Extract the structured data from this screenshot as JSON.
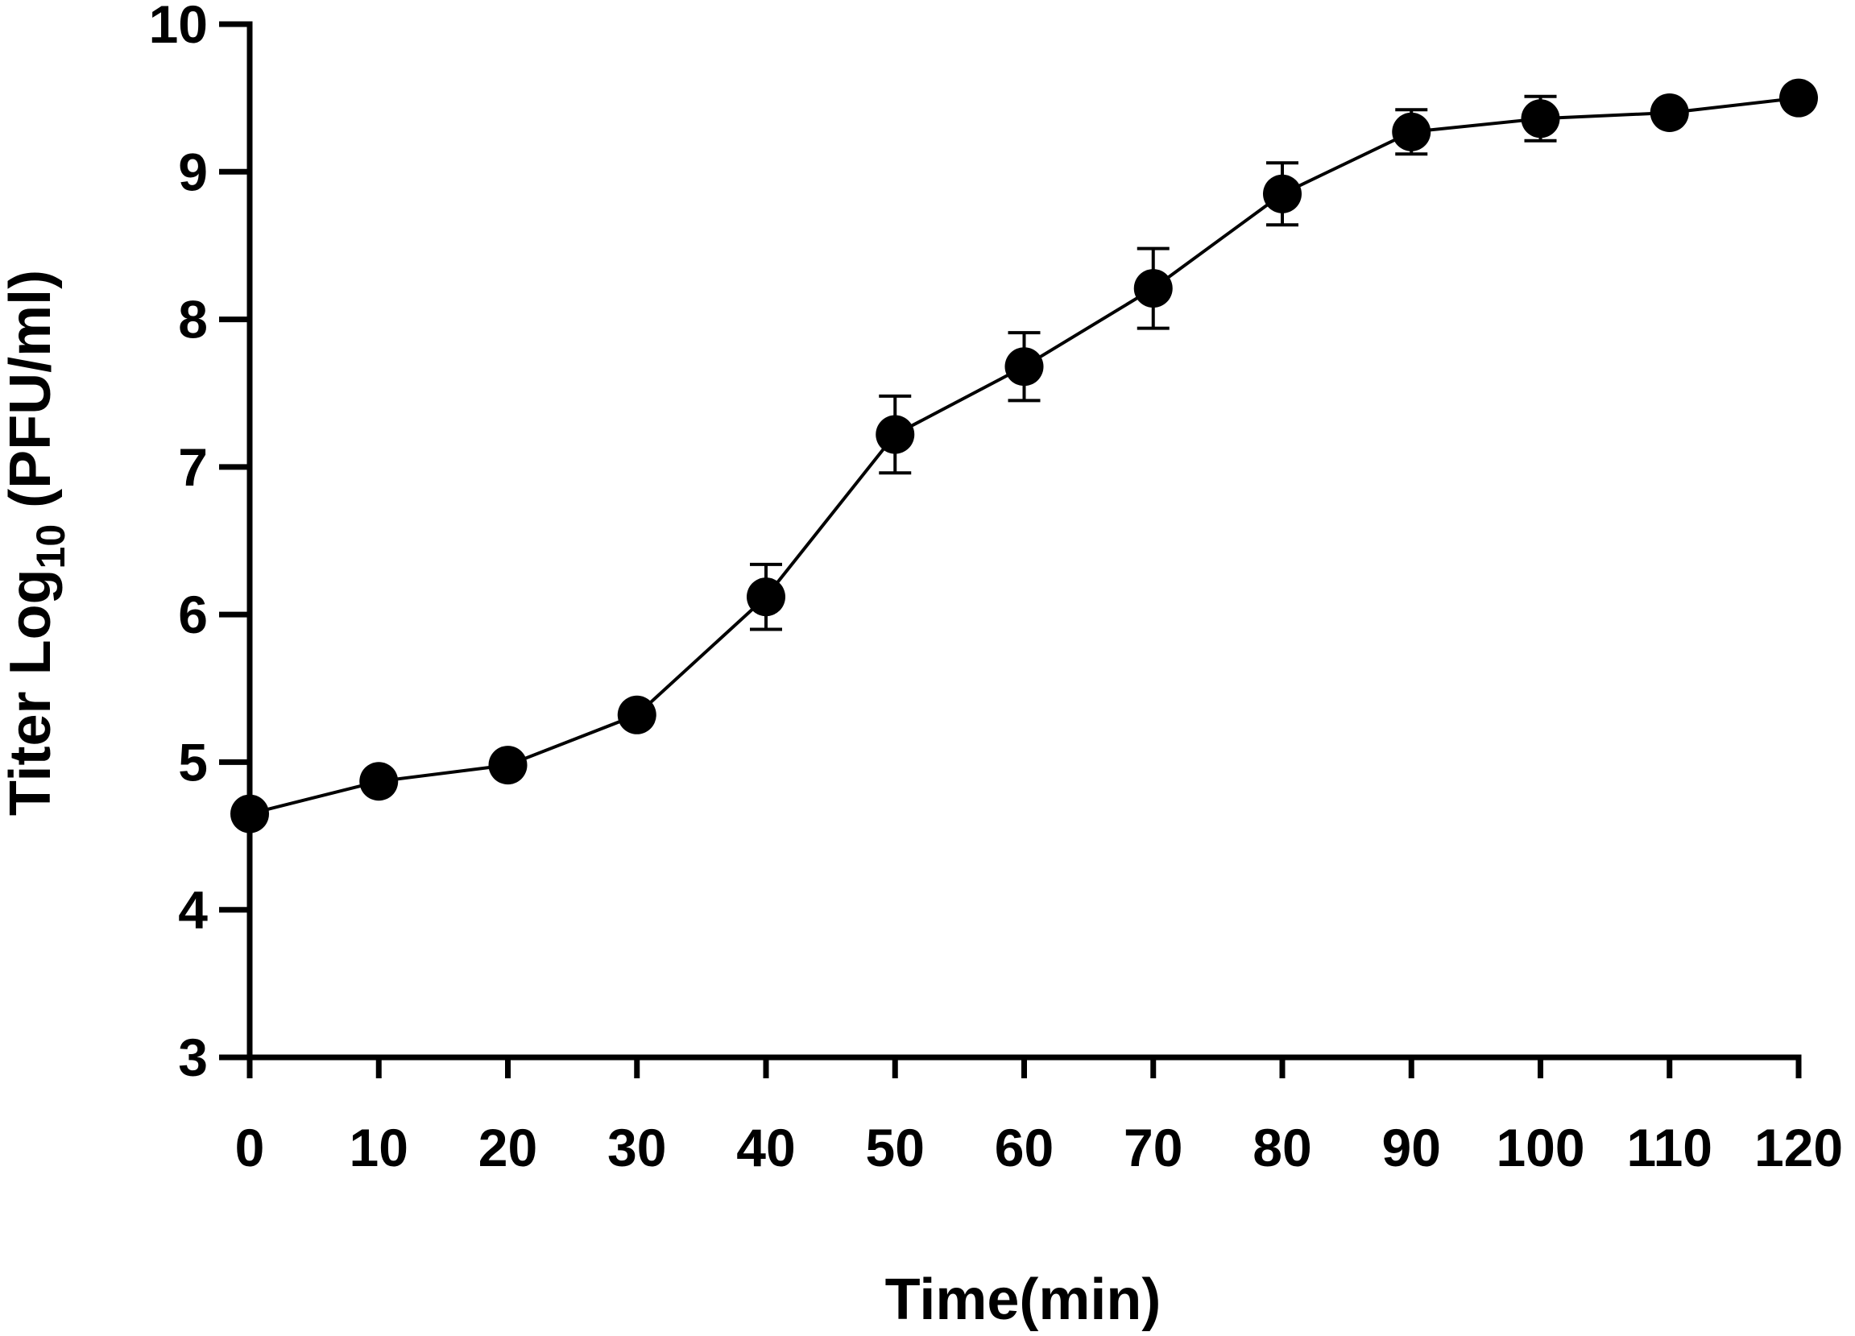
{
  "chart_data": {
    "type": "line",
    "title": "",
    "xlabel": "Time(min)",
    "ylabel": {
      "prefix": "Titer Log",
      "subscript": "10",
      "suffix": " (PFU/ml)"
    },
    "xlim": [
      0,
      120
    ],
    "ylim": [
      3,
      10
    ],
    "xticks": [
      "0",
      "10",
      "20",
      "30",
      "40",
      "50",
      "60",
      "70",
      "80",
      "90",
      "100",
      "110",
      "120"
    ],
    "yticks": [
      "3",
      "4",
      "5",
      "6",
      "7",
      "8",
      "9",
      "10"
    ],
    "grid": false,
    "legend": "none",
    "series": [
      {
        "x": [
          0,
          10,
          20,
          30,
          40,
          50,
          60,
          70,
          80,
          90,
          100,
          110,
          120
        ],
        "y": [
          4.65,
          4.87,
          4.98,
          5.32,
          6.12,
          7.22,
          7.68,
          8.21,
          8.85,
          9.27,
          9.36,
          9.4,
          9.5
        ],
        "error": [
          0,
          0,
          0,
          0,
          0.22,
          0.26,
          0.23,
          0.27,
          0.21,
          0.15,
          0.15,
          0,
          0
        ]
      }
    ],
    "colors": {
      "line": "#000000",
      "marker": "#000000",
      "axis": "#000000"
    }
  }
}
